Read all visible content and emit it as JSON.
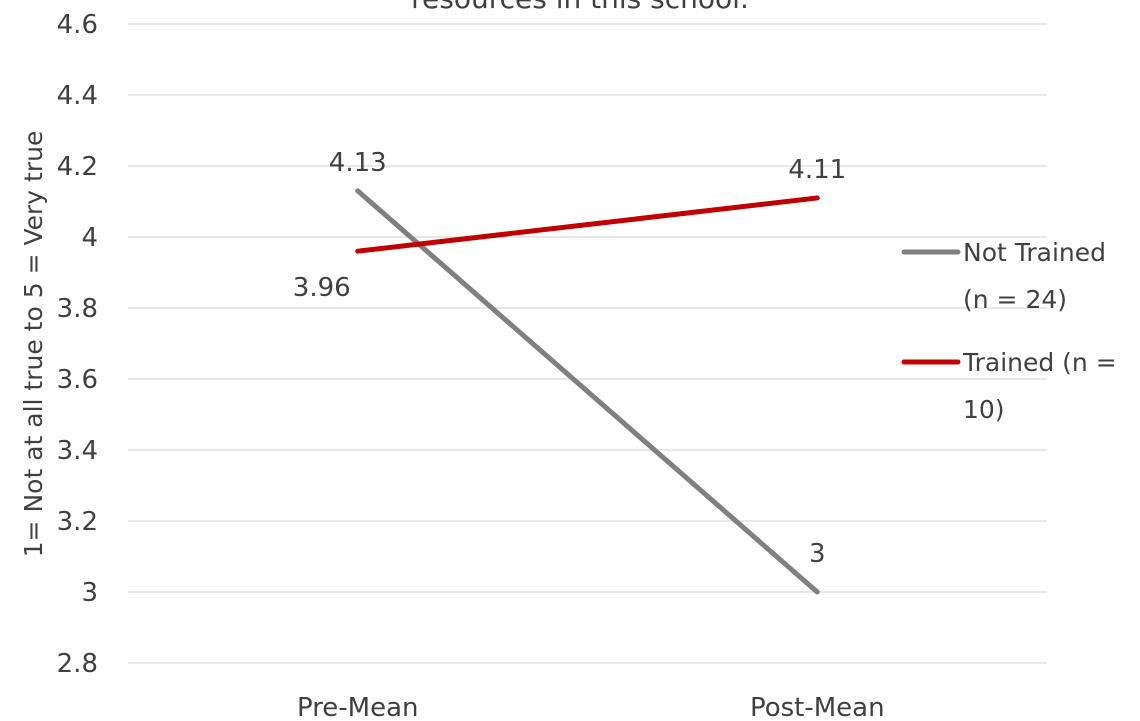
{
  "chart_data": {
    "type": "line",
    "title": "resources in this school.",
    "xlabel": "",
    "ylabel": "1= Not at all true to 5 = Very true",
    "categories": [
      "Pre-Mean",
      "Post-Mean"
    ],
    "ylim": [
      2.8,
      4.6
    ],
    "yticks": [
      "2.8",
      "3",
      "3.2",
      "3.4",
      "3.6",
      "3.8",
      "4",
      "4.2",
      "4.4",
      "4.6"
    ],
    "grid": true,
    "legend_position": "right",
    "series": [
      {
        "name": "Not Trained (n = 24)",
        "legend_lines": [
          "Not Trained",
          "(n = 24)"
        ],
        "color": "#808080",
        "values": [
          4.13,
          3
        ],
        "labels": [
          "4.13",
          "3"
        ]
      },
      {
        "name": "Trained (n = 10)",
        "legend_lines": [
          "Trained (n =",
          "10)"
        ],
        "color": "#c00000",
        "values": [
          3.96,
          4.11
        ],
        "labels": [
          "3.96",
          "4.11"
        ]
      }
    ]
  }
}
